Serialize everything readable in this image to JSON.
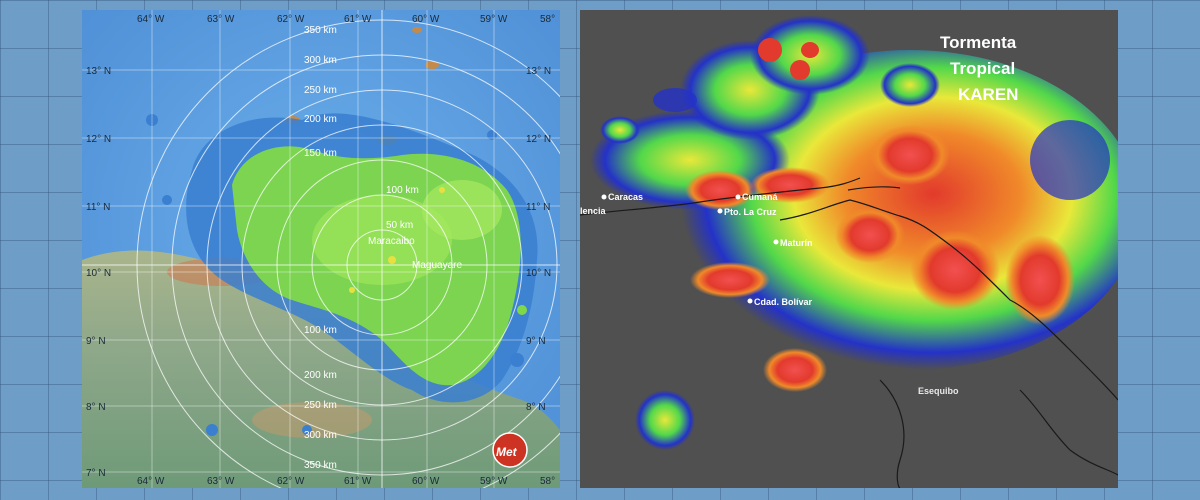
{
  "radar": {
    "lon_labels": [
      "64° W",
      "63° W",
      "62° W",
      "61° W",
      "60° W",
      "59° W",
      "58°"
    ],
    "lat_labels": [
      "13° N",
      "12° N",
      "11° N",
      "10° N",
      "9° N",
      "8° N",
      "7° N"
    ],
    "ring_labels": [
      "50 km",
      "100 km",
      "150 km",
      "200 km",
      "250 km",
      "300 km",
      "350 km"
    ],
    "place_labels": [
      "Maracaibo",
      "Maguayare"
    ],
    "logo_text": "Met"
  },
  "satellite": {
    "title_lines": [
      "Tormenta",
      "Tropical",
      "KAREN"
    ],
    "cities": [
      "Caracas",
      "Cumaná",
      "Pto. La Cruz",
      "Maturín",
      "Cdad. Bolívar"
    ],
    "partial_label": "lencia",
    "region_label": "Esequibo"
  },
  "colors": {
    "ocean": "#5f9fe0",
    "radar_land": "#8fae8c",
    "rain_green": "#7fd84a",
    "rain_blue": "#3a7fd0",
    "sat_red": "#e23a2c",
    "sat_orange": "#f08a2a",
    "sat_yellow": "#e9e83a",
    "sat_green": "#52d84a",
    "sat_blue": "#2432c8"
  }
}
